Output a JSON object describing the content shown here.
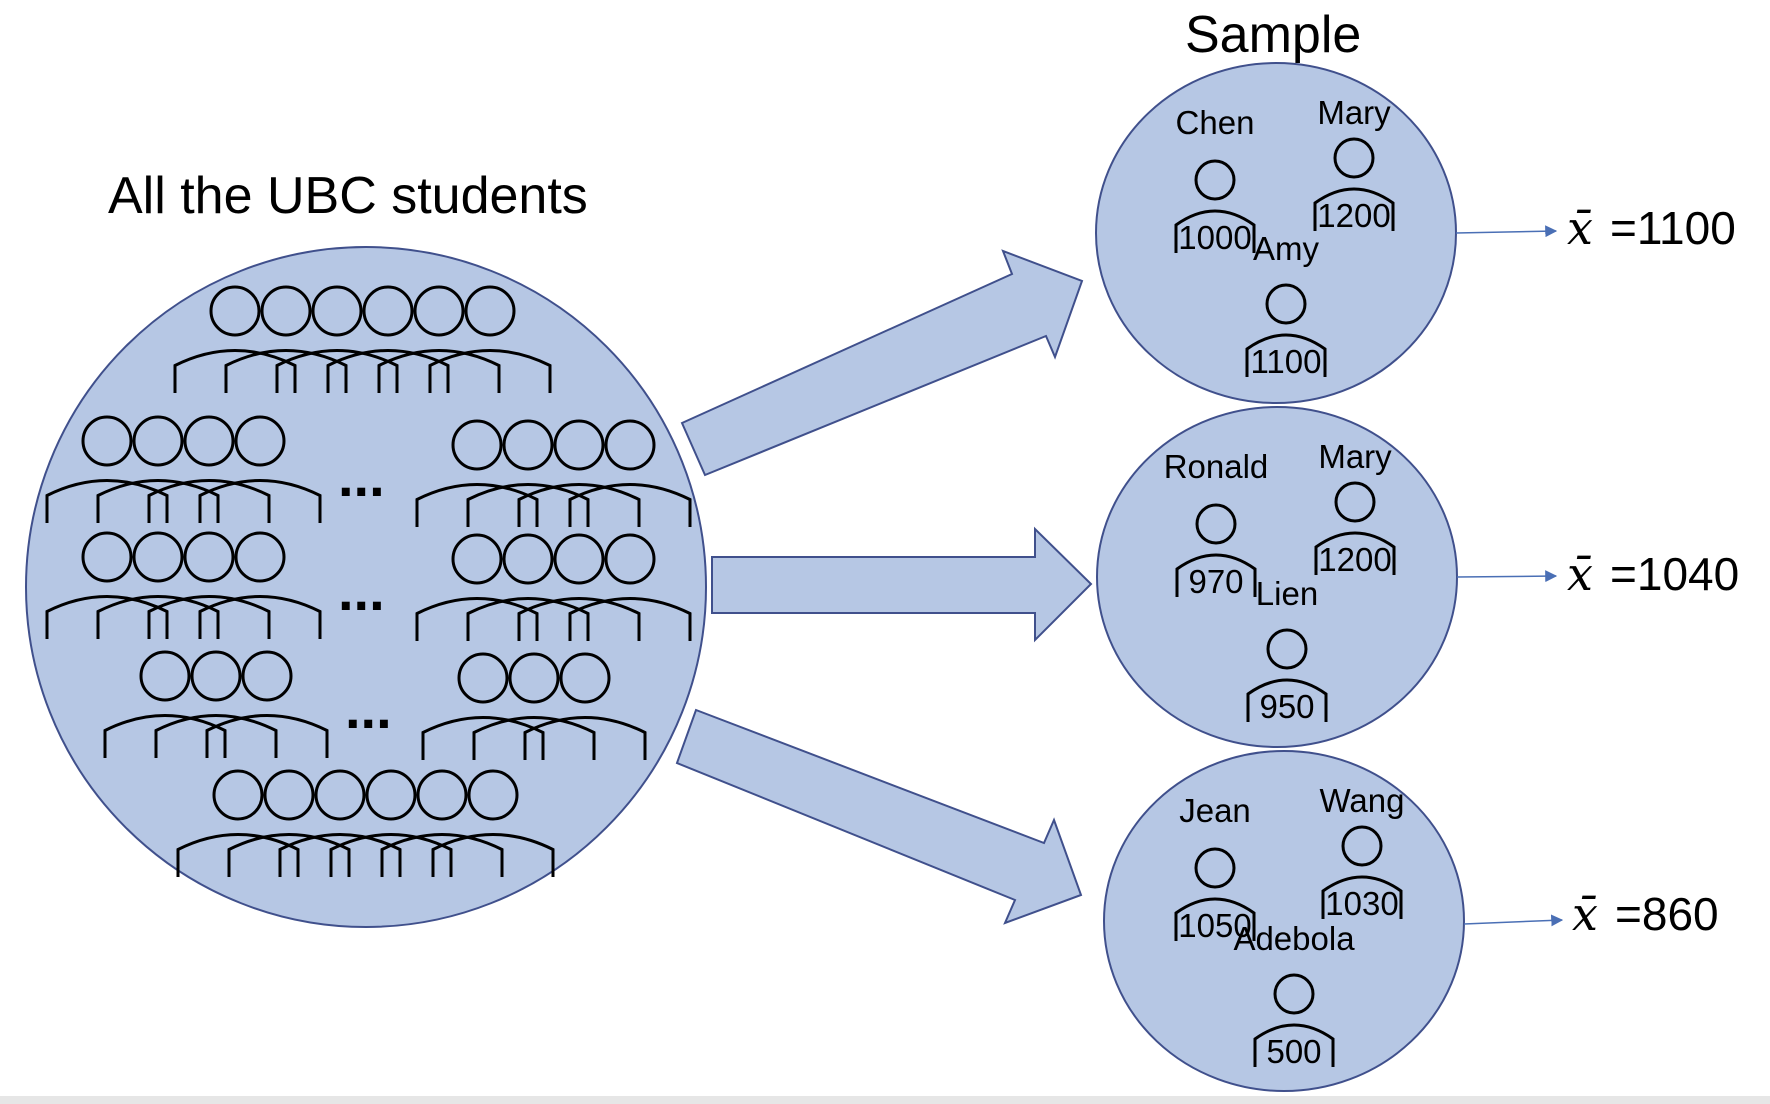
{
  "population": {
    "title": "All the UBC students",
    "ellipsis": "..."
  },
  "sample_header": "Sample",
  "mean_symbol": "x̄",
  "samples": [
    {
      "students": [
        {
          "name": "Chen",
          "score": "1000"
        },
        {
          "name": "Mary",
          "score": "1200"
        },
        {
          "name": "Amy",
          "score": "1100"
        }
      ],
      "mean_label": "=1100"
    },
    {
      "students": [
        {
          "name": "Ronald",
          "score": "970"
        },
        {
          "name": "Mary",
          "score": "1200"
        },
        {
          "name": "Lien",
          "score": "950"
        }
      ],
      "mean_label": "=1040"
    },
    {
      "students": [
        {
          "name": "Jean",
          "score": "1050"
        },
        {
          "name": "Wang",
          "score": "1030"
        },
        {
          "name": "Adebola",
          "score": "500"
        }
      ],
      "mean_label": "=860"
    }
  ],
  "colors": {
    "circle_fill": "#b6c7e4",
    "circle_stroke": "#40508c",
    "connector": "#4a6fb5"
  }
}
